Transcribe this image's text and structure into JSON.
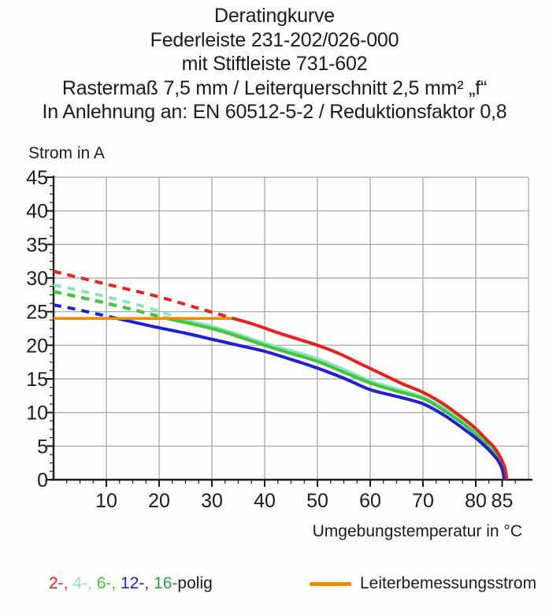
{
  "header": {
    "lines": [
      "Deratingkurve",
      "Federleiste 231-202/026-000",
      "mit Stiftleiste 731-602",
      "Rastermaß 7,5 mm / Leiterquerschnitt 2,5 mm² „f“",
      "In Anlehnung an: EN 60512-5-2 / Reduktionsfaktor 0,8"
    ]
  },
  "chart_data": {
    "type": "line",
    "title": "Deratingkurve",
    "xlabel": "Umgebungstemperatur in °C",
    "ylabel": "Strom in A",
    "xlim": [
      0,
      90
    ],
    "ylim": [
      0,
      45
    ],
    "grid": {
      "x": [
        10,
        20,
        30,
        40,
        50,
        60,
        70,
        80,
        90
      ],
      "y": [
        5,
        10,
        15,
        20,
        25,
        30,
        35,
        40,
        45
      ]
    },
    "x_ticks": [
      10,
      20,
      30,
      40,
      50,
      60,
      70,
      80,
      85
    ],
    "x_tick_labels": [
      "10",
      "20",
      "30",
      "40",
      "50",
      "60",
      "70",
      "80",
      "85"
    ],
    "y_ticks": [
      0,
      5,
      10,
      15,
      20,
      25,
      30,
      35,
      40,
      45
    ],
    "y_tick_labels": [
      "0",
      "5",
      "10",
      "15",
      "20",
      "25",
      "30",
      "35",
      "40",
      "45"
    ],
    "x_minor_step": 2.5,
    "y_minor_step": 1.25,
    "colors": {
      "grid": "#9ba4a4",
      "axis": "#1c1c1c",
      "red": "#e8211d",
      "mint": "#8fe2c1",
      "green": "#40c73c",
      "blue": "#1f1fd3",
      "darkgreen": "#2f9e44",
      "orange": "#f18a00"
    },
    "series": [
      {
        "name": "16-polig",
        "color": "#2f9e44",
        "note": "overlaps 6-polig curve",
        "dashed": [
          [
            0,
            28
          ],
          [
            7,
            26.8
          ],
          [
            14,
            25.5
          ],
          [
            19,
            24.5
          ],
          [
            21.5,
            24
          ]
        ],
        "solid": [
          [
            21.5,
            24
          ],
          [
            30,
            22.5
          ],
          [
            35,
            21.3
          ],
          [
            40,
            20.0
          ],
          [
            45,
            18.8
          ],
          [
            50,
            17.6
          ],
          [
            55,
            16.0
          ],
          [
            60,
            14.4
          ],
          [
            65,
            13.2
          ],
          [
            70,
            12.1
          ],
          [
            74,
            10.3
          ],
          [
            78,
            8.1
          ],
          [
            80,
            6.8
          ],
          [
            82,
            5.3
          ],
          [
            84,
            3.5
          ],
          [
            85.1,
            1.8
          ],
          [
            85.6,
            0
          ]
        ]
      },
      {
        "name": "4-polig",
        "color": "#8fe2c1",
        "dashed": [
          [
            0,
            29
          ],
          [
            8,
            27.6
          ],
          [
            16,
            26.0
          ],
          [
            21,
            24.8
          ],
          [
            23.5,
            24
          ]
        ],
        "solid": [
          [
            23.5,
            24
          ],
          [
            30,
            22.8
          ],
          [
            35,
            21.6
          ],
          [
            40,
            20.3
          ],
          [
            45,
            19.2
          ],
          [
            50,
            18.0
          ],
          [
            55,
            16.4
          ],
          [
            60,
            14.7
          ],
          [
            65,
            13.5
          ],
          [
            70,
            12.3
          ],
          [
            74,
            10.6
          ],
          [
            78,
            8.4
          ],
          [
            80,
            7.1
          ],
          [
            82,
            5.6
          ],
          [
            84,
            3.8
          ],
          [
            85.2,
            2.0
          ],
          [
            85.7,
            0
          ]
        ]
      },
      {
        "name": "6-polig",
        "color": "#40c73c",
        "dashed": [
          [
            0,
            28
          ],
          [
            7,
            26.8
          ],
          [
            14,
            25.5
          ],
          [
            19,
            24.5
          ],
          [
            21.5,
            24
          ]
        ],
        "solid": [
          [
            21.5,
            24
          ],
          [
            30,
            22.5
          ],
          [
            35,
            21.3
          ],
          [
            40,
            20.0
          ],
          [
            45,
            18.8
          ],
          [
            50,
            17.6
          ],
          [
            55,
            16.0
          ],
          [
            60,
            14.4
          ],
          [
            65,
            13.2
          ],
          [
            70,
            12.1
          ],
          [
            74,
            10.3
          ],
          [
            78,
            8.1
          ],
          [
            80,
            6.8
          ],
          [
            82,
            5.3
          ],
          [
            84,
            3.5
          ],
          [
            85.1,
            1.8
          ],
          [
            85.6,
            0
          ]
        ]
      },
      {
        "name": "12-polig",
        "color": "#1f1fd3",
        "dashed": [
          [
            0,
            26
          ],
          [
            4,
            25.4
          ],
          [
            8,
            24.7
          ],
          [
            12,
            24
          ]
        ],
        "solid": [
          [
            12,
            24
          ],
          [
            16,
            23.3
          ],
          [
            20,
            22.6
          ],
          [
            25,
            21.8
          ],
          [
            30,
            20.9
          ],
          [
            35,
            20.0
          ],
          [
            40,
            19.1
          ],
          [
            45,
            17.9
          ],
          [
            50,
            16.6
          ],
          [
            55,
            15.1
          ],
          [
            60,
            13.4
          ],
          [
            65,
            12.4
          ],
          [
            70,
            11.3
          ],
          [
            74,
            9.6
          ],
          [
            78,
            7.4
          ],
          [
            80,
            6.2
          ],
          [
            82,
            4.8
          ],
          [
            84,
            3.1
          ],
          [
            85,
            1.6
          ],
          [
            85.4,
            0
          ]
        ]
      },
      {
        "name": "Leiterbemessungsstrom",
        "color": "#f18a00",
        "solid": [
          [
            0,
            24
          ],
          [
            34,
            24
          ]
        ]
      },
      {
        "name": "2-polig",
        "color": "#e8211d",
        "dashed": [
          [
            0,
            31
          ],
          [
            10,
            29.1
          ],
          [
            20,
            27.2
          ],
          [
            27,
            25.6
          ],
          [
            31,
            24.7
          ],
          [
            34,
            24
          ]
        ],
        "solid": [
          [
            34,
            24
          ],
          [
            38,
            23.1
          ],
          [
            42,
            22.0
          ],
          [
            46,
            21.0
          ],
          [
            50,
            20.0
          ],
          [
            54,
            18.8
          ],
          [
            58,
            17.3
          ],
          [
            62,
            15.8
          ],
          [
            66,
            14.3
          ],
          [
            70,
            13.0
          ],
          [
            74,
            11.2
          ],
          [
            78,
            8.9
          ],
          [
            80,
            7.6
          ],
          [
            82,
            6.0
          ],
          [
            83.5,
            4.8
          ],
          [
            84.7,
            3.3
          ],
          [
            85.5,
            1.8
          ],
          [
            85.9,
            0
          ]
        ]
      }
    ]
  },
  "legend": {
    "poles": {
      "parts": [
        {
          "text": "2-,",
          "color": "#e8211d"
        },
        {
          "text": "4-,",
          "color": "#8fe2c1"
        },
        {
          "text": "6-,",
          "color": "#40c73c"
        },
        {
          "text": "12-,",
          "color": "#1f1fd3"
        },
        {
          "text": "16-",
          "color": "#2f9e44"
        },
        {
          "text": "polig",
          "color": "#1c1c1c"
        }
      ]
    },
    "rated_current": {
      "label": "Leiterbemessungsstrom",
      "color": "#f18a00"
    }
  }
}
